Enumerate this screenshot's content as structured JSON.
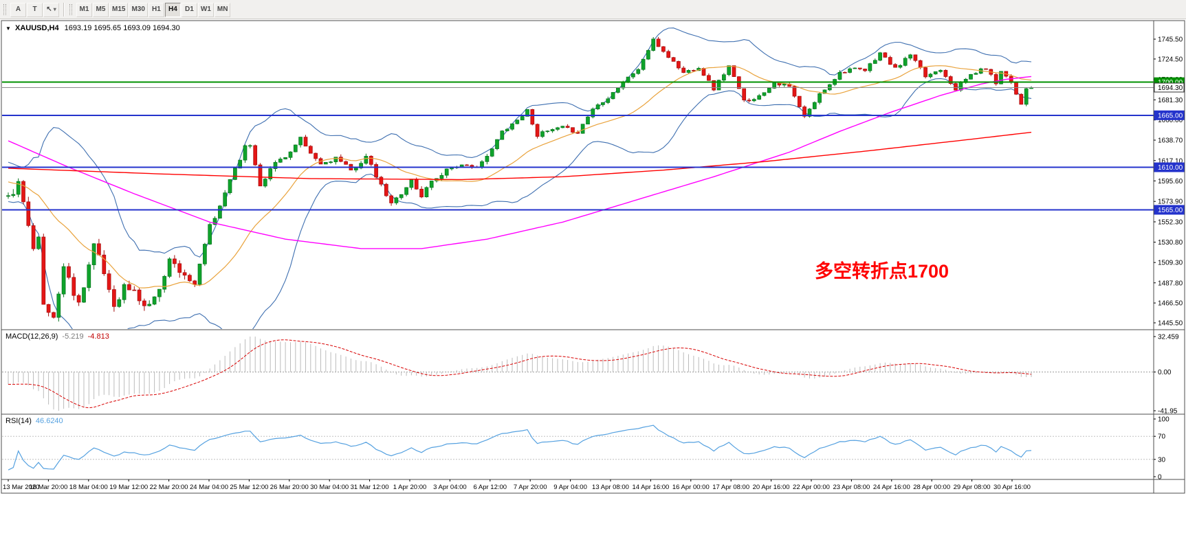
{
  "toolbar": {
    "tools": [
      {
        "label": "A"
      },
      {
        "label": "T"
      }
    ],
    "cursor_tool": {
      "glyph": "↖",
      "caret": "▾"
    },
    "timeframes": [
      "M1",
      "M5",
      "M15",
      "M30",
      "H1",
      "H4",
      "D1",
      "W1",
      "MN"
    ],
    "active_timeframe": "H4"
  },
  "chart": {
    "dropdown_marker": "▼",
    "symbol_period": "XAUUSD,H4",
    "ohlc_text": "1693.19 1695.65 1693.09 1694.30",
    "annotation": {
      "text": "多空转折点1700",
      "color": "#FF0000"
    }
  },
  "chart_data": {
    "type": "candlestick",
    "symbol": "XAUUSD",
    "timeframe": "H4",
    "ohlc_current": {
      "open": 1693.19,
      "high": 1695.65,
      "low": 1693.09,
      "close": 1694.3
    },
    "price_axis": {
      "min": 1445.5,
      "max": 1745.5,
      "ticks": [
        "1745.50",
        "1724.50",
        "1703.00",
        "1681.30",
        "1660.00",
        "1638.70",
        "1617.10",
        "1595.60",
        "1573.90",
        "1552.30",
        "1530.80",
        "1509.30",
        "1487.80",
        "1466.50",
        "1445.50"
      ]
    },
    "candles_count": 204,
    "seed": 11,
    "price_path_anchors": [
      [
        0,
        1577
      ],
      [
        2,
        1592
      ],
      [
        5,
        1528
      ],
      [
        6,
        1540
      ],
      [
        7,
        1462
      ],
      [
        9,
        1451
      ],
      [
        11,
        1505
      ],
      [
        13,
        1478
      ],
      [
        14,
        1466
      ],
      [
        17,
        1528
      ],
      [
        19,
        1498
      ],
      [
        21,
        1464
      ],
      [
        23,
        1484
      ],
      [
        25,
        1478
      ],
      [
        27,
        1463
      ],
      [
        29,
        1470
      ],
      [
        32,
        1512
      ],
      [
        35,
        1497
      ],
      [
        37,
        1484
      ],
      [
        40,
        1550
      ],
      [
        41,
        1554
      ],
      [
        44,
        1598
      ],
      [
        47,
        1631
      ],
      [
        48,
        1634
      ],
      [
        50,
        1592
      ],
      [
        53,
        1615
      ],
      [
        56,
        1626
      ],
      [
        58,
        1640
      ],
      [
        59,
        1630
      ],
      [
        62,
        1613
      ],
      [
        65,
        1620
      ],
      [
        68,
        1606
      ],
      [
        71,
        1621
      ],
      [
        74,
        1590
      ],
      [
        76,
        1571
      ],
      [
        77,
        1577
      ],
      [
        80,
        1596
      ],
      [
        82,
        1578
      ],
      [
        83,
        1590
      ],
      [
        87,
        1608
      ],
      [
        89,
        1612
      ],
      [
        92,
        1609
      ],
      [
        95,
        1620
      ],
      [
        98,
        1648
      ],
      [
        101,
        1660
      ],
      [
        103,
        1670
      ],
      [
        105,
        1644
      ],
      [
        107,
        1648
      ],
      [
        110,
        1652
      ],
      [
        113,
        1647
      ],
      [
        116,
        1672
      ],
      [
        119,
        1684
      ],
      [
        122,
        1700
      ],
      [
        125,
        1714
      ],
      [
        128,
        1744
      ],
      [
        131,
        1727
      ],
      [
        134,
        1710
      ],
      [
        137,
        1716
      ],
      [
        140,
        1693
      ],
      [
        143,
        1717
      ],
      [
        146,
        1680
      ],
      [
        149,
        1685
      ],
      [
        152,
        1700
      ],
      [
        155,
        1695
      ],
      [
        158,
        1663
      ],
      [
        161,
        1687
      ],
      [
        165,
        1710
      ],
      [
        167,
        1714
      ],
      [
        170,
        1712
      ],
      [
        173,
        1731
      ],
      [
        176,
        1714
      ],
      [
        179,
        1729
      ],
      [
        182,
        1706
      ],
      [
        185,
        1714
      ],
      [
        188,
        1693
      ],
      [
        191,
        1708
      ],
      [
        194,
        1715
      ],
      [
        196,
        1699
      ],
      [
        197,
        1713
      ],
      [
        199,
        1700
      ],
      [
        201,
        1677
      ],
      [
        202,
        1682
      ],
      [
        203,
        1694.3
      ]
    ],
    "horizontal_levels": [
      {
        "price": 1700,
        "label": "1700.00",
        "color": "#009000",
        "width": 2
      },
      {
        "price": 1665,
        "label": "1665.00",
        "color": "#2433CC",
        "width": 2
      },
      {
        "price": 1610,
        "label": "1610.00",
        "color": "#2433CC",
        "width": 2
      },
      {
        "price": 1565,
        "label": "1565.00",
        "color": "#2433CC",
        "width": 2
      }
    ],
    "current_price": {
      "value": 1694.3,
      "label": "1694.30"
    },
    "bollinger": {
      "period": 20,
      "deviation": 2
    },
    "moving_averages": {
      "magenta": {
        "color": "#FF00FF",
        "anchors": [
          [
            0,
            1638
          ],
          [
            12,
            1610
          ],
          [
            25,
            1582
          ],
          [
            40,
            1552
          ],
          [
            55,
            1534
          ],
          [
            70,
            1524
          ],
          [
            82,
            1524
          ],
          [
            95,
            1534
          ],
          [
            110,
            1552
          ],
          [
            125,
            1576
          ],
          [
            140,
            1600
          ],
          [
            155,
            1626
          ],
          [
            165,
            1648
          ],
          [
            175,
            1668
          ],
          [
            185,
            1686
          ],
          [
            193,
            1698
          ],
          [
            198,
            1703
          ],
          [
            203,
            1706
          ]
        ]
      },
      "red": {
        "color": "#FF0000",
        "anchors": [
          [
            0,
            1609
          ],
          [
            30,
            1603
          ],
          [
            60,
            1598
          ],
          [
            90,
            1597
          ],
          [
            110,
            1600
          ],
          [
            130,
            1607
          ],
          [
            150,
            1616
          ],
          [
            170,
            1627
          ],
          [
            190,
            1639
          ],
          [
            203,
            1647
          ]
        ]
      }
    },
    "colors": {
      "up": "#0FA32B",
      "up_edge": "#07741D",
      "down": "#E41616",
      "down_edge": "#A30C0C",
      "band": "#3E6FB0",
      "mid": "#E9A23B"
    },
    "macd": {
      "label": "MACD(12,26,9)",
      "value_main": "-5.219",
      "value_signal": "-4.813",
      "axis": [
        "32.459",
        "0.00",
        "-41.95"
      ],
      "histogram_color": "#BBBBBB",
      "signal_color": "#D80000"
    },
    "rsi": {
      "label": "RSI(14)",
      "value": "46.6240",
      "axis_ticks": [
        "100",
        "70",
        "30",
        "0"
      ],
      "levels": [
        70,
        30
      ],
      "line_color": "#55A1E0"
    },
    "time_labels": [
      "13 Mar 2020",
      "16 Mar 20:00",
      "18 Mar 04:00",
      "19 Mar 12:00",
      "22 Mar 20:00",
      "24 Mar 04:00",
      "25 Mar 12:00",
      "26 Mar 20:00",
      "30 Mar 04:00",
      "31 Mar 12:00",
      "1 Apr 20:00",
      "3 Apr 04:00",
      "6 Apr 12:00",
      "7 Apr 20:00",
      "9 Apr 04:00",
      "13 Apr 08:00",
      "14 Apr 16:00",
      "16 Apr 00:00",
      "17 Apr 08:00",
      "20 Apr 16:00",
      "22 Apr 00:00",
      "23 Apr 08:00",
      "24 Apr 16:00",
      "28 Apr 00:00",
      "29 Apr 08:00",
      "30 Apr 16:00"
    ]
  }
}
